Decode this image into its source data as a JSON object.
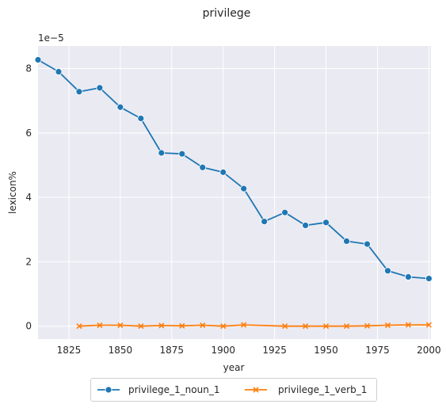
{
  "chart_data": {
    "type": "line",
    "title": "privilege",
    "xlabel": "year",
    "ylabel": "lexicon%",
    "y_scale_label": "1e−5",
    "xlim": [
      1810,
      2001
    ],
    "ylim": [
      -0.4,
      8.7
    ],
    "x_ticks": [
      1825,
      1850,
      1875,
      1900,
      1925,
      1950,
      1975,
      2000
    ],
    "y_ticks": [
      0,
      2,
      4,
      6,
      8
    ],
    "grid": true,
    "legend_position": "bottom-center",
    "series": [
      {
        "name": "privilege_1_noun_1",
        "color": "#1f77b4",
        "marker": "circle",
        "x": [
          1810,
          1820,
          1830,
          1840,
          1850,
          1860,
          1870,
          1880,
          1890,
          1900,
          1910,
          1920,
          1930,
          1940,
          1950,
          1960,
          1970,
          1980,
          1990,
          2000
        ],
        "y": [
          8.27,
          7.9,
          7.28,
          7.4,
          6.8,
          6.45,
          5.38,
          5.35,
          4.93,
          4.78,
          4.27,
          3.25,
          3.53,
          3.13,
          3.22,
          2.64,
          2.55,
          1.72,
          1.53,
          1.48
        ]
      },
      {
        "name": "privilege_1_verb_1",
        "color": "#ff7f0e",
        "marker": "x",
        "x": [
          1830,
          1840,
          1850,
          1860,
          1870,
          1880,
          1890,
          1900,
          1910,
          1930,
          1940,
          1950,
          1960,
          1970,
          1980,
          1990,
          2000
        ],
        "y": [
          0.0,
          0.03,
          0.03,
          0.0,
          0.02,
          0.01,
          0.03,
          0.0,
          0.04,
          0.0,
          0.0,
          0.0,
          0.0,
          0.01,
          0.03,
          0.04,
          0.04
        ]
      }
    ]
  }
}
